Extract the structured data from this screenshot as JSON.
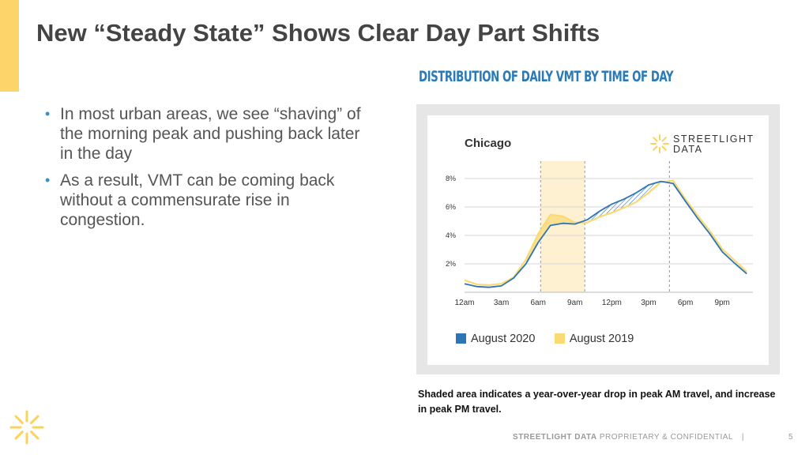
{
  "slide": {
    "title": "New “Steady State” Shows Clear Day Part Shifts",
    "bullets": [
      "In most urban areas, we see “shaving” of the morning peak and pushing back later in the day",
      "As a result, VMT can be coming back without a commensurate rise in congestion."
    ],
    "chart_heading": "DISTRIBUTION OF DAILY VMT BY TIME OF DAY",
    "caption": "Shaded area indicates a year-over-year drop in peak AM travel, and increase in peak PM travel.",
    "footer": {
      "brand": "STREETLIGHT DATA",
      "text": "PROPRIETARY & CONFIDENTIAL",
      "separator": "|",
      "page": "5"
    },
    "accent_color": "#fbd56a"
  },
  "chart": {
    "city_label": "Chicago",
    "brand_line1": "STREETLIGHT",
    "brand_line2": "DATA"
  },
  "chart_data": {
    "type": "line",
    "title": "Chicago",
    "xlabel": "",
    "ylabel": "",
    "x_tick_labels": [
      "12am",
      "3am",
      "6am",
      "9am",
      "12pm",
      "3pm",
      "6pm",
      "9pm"
    ],
    "x_tick_hours": [
      0,
      3,
      6,
      9,
      12,
      15,
      18,
      21
    ],
    "y_tick_labels": [
      "2%",
      "4%",
      "6%",
      "8%"
    ],
    "y_ticks": [
      2,
      4,
      6,
      8
    ],
    "xlim": [
      0,
      23.5
    ],
    "ylim": [
      0,
      9
    ],
    "grid": true,
    "legend_position": "bottom",
    "highlight_band": [
      6.2,
      9.8
    ],
    "series": [
      {
        "name": "August 2020",
        "color": "#2e75b6",
        "x": [
          0,
          1,
          2,
          3,
          4,
          5,
          6,
          7,
          8,
          9,
          10,
          11,
          12,
          13,
          14,
          15,
          16,
          17,
          18,
          19,
          20,
          21,
          22,
          23
        ],
        "values": [
          0.6,
          0.4,
          0.35,
          0.45,
          1.0,
          2.0,
          3.5,
          4.7,
          4.85,
          4.8,
          5.1,
          5.7,
          6.2,
          6.55,
          7.0,
          7.55,
          7.8,
          7.65,
          6.4,
          5.2,
          4.1,
          2.85,
          2.05,
          1.3
        ]
      },
      {
        "name": "August 2019",
        "color": "#fbd974",
        "x": [
          0,
          1,
          2,
          3,
          4,
          5,
          6,
          7,
          8,
          9,
          10,
          11,
          12,
          13,
          14,
          15,
          16,
          17,
          18,
          19,
          20,
          21,
          22,
          23
        ],
        "values": [
          0.85,
          0.55,
          0.5,
          0.6,
          1.05,
          2.3,
          4.1,
          5.45,
          5.35,
          4.9,
          4.9,
          5.3,
          5.6,
          5.95,
          6.35,
          7.0,
          7.75,
          7.85,
          6.55,
          5.4,
          4.3,
          3.05,
          2.25,
          1.45
        ]
      }
    ]
  }
}
